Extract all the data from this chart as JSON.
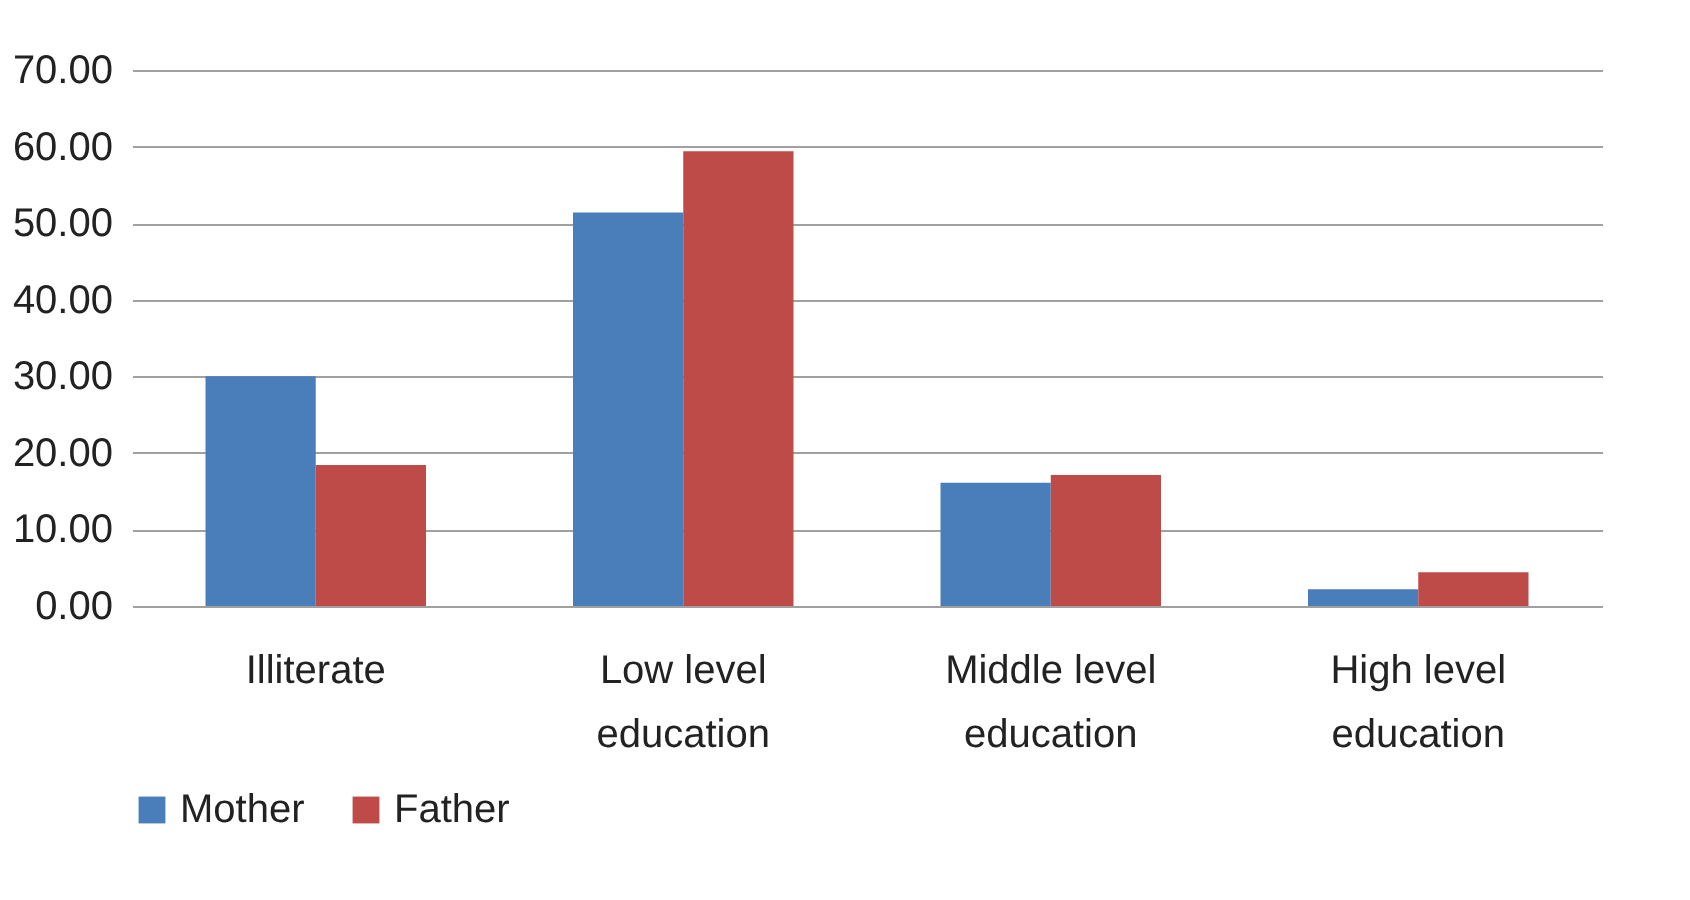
{
  "chart_data": {
    "type": "bar",
    "categories": [
      "Illiterate",
      "Low level education",
      "Middle level education",
      "High level education"
    ],
    "series": [
      {
        "name": "Mother",
        "color": "#4a7ebb",
        "values": [
          30.0,
          51.4,
          16.1,
          2.2
        ]
      },
      {
        "name": "Father",
        "color": "#be4b48",
        "values": [
          18.4,
          59.4,
          17.1,
          4.4
        ]
      }
    ],
    "ylim": [
      0,
      70
    ],
    "yticks": [
      {
        "value": 0,
        "label": "0.00"
      },
      {
        "value": 10,
        "label": "10.00"
      },
      {
        "value": 20,
        "label": "20.00"
      },
      {
        "value": 30,
        "label": "30.00"
      },
      {
        "value": 40,
        "label": "40.00"
      },
      {
        "value": 50,
        "label": "50.00"
      },
      {
        "value": 60,
        "label": "60.00"
      },
      {
        "value": 70,
        "label": "70.00"
      }
    ],
    "grid": "y",
    "legend": "bottom"
  }
}
